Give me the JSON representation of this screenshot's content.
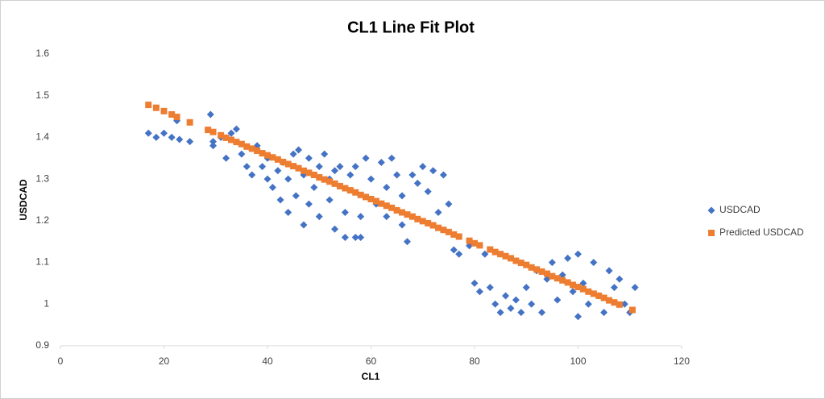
{
  "chart_data": {
    "type": "scatter",
    "title": "CL1 Line Fit  Plot",
    "x_label": "CL1",
    "y_label": "USDCAD",
    "xlim": [
      0,
      120
    ],
    "xticks": [
      0,
      20,
      40,
      60,
      80,
      100,
      120
    ],
    "ylim": [
      0.9,
      1.6
    ],
    "yticks": [
      0.9,
      1,
      1.1,
      1.2,
      1.3,
      1.4,
      1.5,
      1.6
    ],
    "grid": false,
    "legend": "right",
    "series": [
      {
        "name": "USDCAD",
        "color": "#4472c4",
        "marker": "diamond",
        "x": [
          17,
          18.5,
          20,
          21.5,
          22.5,
          23,
          25,
          29,
          29.5,
          29.5,
          31,
          32,
          33,
          34,
          35,
          36,
          37,
          38,
          39,
          40,
          40,
          41,
          42,
          42.5,
          43,
          44,
          44,
          45,
          45.5,
          46,
          47,
          47,
          48,
          48,
          49,
          50,
          50,
          51,
          52,
          52,
          53,
          53,
          54,
          55,
          55,
          56,
          57,
          57,
          58,
          58,
          59,
          60,
          61,
          62,
          63,
          63,
          64,
          65,
          66,
          66,
          67,
          68,
          69,
          70,
          71,
          72,
          73,
          74,
          75,
          76,
          77,
          79,
          80,
          81,
          82,
          83,
          84,
          85,
          86,
          87,
          88,
          89,
          90,
          91,
          92,
          93,
          94,
          95,
          96,
          97,
          98,
          99,
          100,
          100,
          101,
          102,
          103,
          104,
          105,
          106,
          107,
          108,
          109,
          110,
          111
        ],
        "values": [
          1.41,
          1.4,
          1.41,
          1.4,
          1.44,
          1.395,
          1.39,
          1.455,
          1.39,
          1.38,
          1.4,
          1.35,
          1.41,
          1.42,
          1.36,
          1.33,
          1.31,
          1.38,
          1.33,
          1.3,
          1.35,
          1.28,
          1.32,
          1.25,
          1.34,
          1.22,
          1.3,
          1.36,
          1.26,
          1.37,
          1.19,
          1.31,
          1.24,
          1.35,
          1.28,
          1.33,
          1.21,
          1.36,
          1.3,
          1.25,
          1.32,
          1.18,
          1.33,
          1.16,
          1.22,
          1.31,
          1.33,
          1.16,
          1.21,
          1.16,
          1.35,
          1.3,
          1.24,
          1.34,
          1.28,
          1.21,
          1.35,
          1.31,
          1.26,
          1.19,
          1.15,
          1.31,
          1.29,
          1.33,
          1.27,
          1.32,
          1.22,
          1.31,
          1.24,
          1.13,
          1.12,
          1.14,
          1.05,
          1.03,
          1.12,
          1.04,
          1,
          0.98,
          1.02,
          0.99,
          1.01,
          0.98,
          1.04,
          1,
          1.08,
          0.98,
          1.06,
          1.1,
          1.01,
          1.07,
          1.11,
          1.03,
          0.97,
          1.12,
          1.05,
          1,
          1.1,
          1.02,
          0.98,
          1.08,
          1.04,
          1.06,
          1,
          0.98,
          1.04
        ]
      },
      {
        "name": "Predicted USDCAD",
        "color": "#ed7d31",
        "marker": "square",
        "x": [
          17,
          18.5,
          20,
          21.5,
          22.5,
          25,
          28.5,
          29.5,
          31,
          32,
          33,
          34,
          35,
          36,
          37,
          38,
          39,
          40,
          41,
          42,
          43,
          44,
          45,
          46,
          47,
          48,
          49,
          50,
          51,
          52,
          53,
          54,
          55,
          56,
          57,
          58,
          59,
          60,
          61,
          62,
          63,
          64,
          65,
          66,
          67,
          68,
          69,
          70,
          71,
          72,
          73,
          74,
          75,
          76,
          77,
          79,
          80,
          81,
          83,
          84,
          85,
          86,
          87,
          88,
          89,
          90,
          91,
          92,
          93,
          94,
          95,
          96,
          97,
          98,
          99,
          100,
          101,
          102,
          103,
          104,
          105,
          106,
          107,
          108,
          110.5
        ],
        "values": [
          1.478,
          1.471,
          1.463,
          1.455,
          1.449,
          1.436,
          1.418,
          1.413,
          1.405,
          1.399,
          1.394,
          1.389,
          1.384,
          1.378,
          1.373,
          1.368,
          1.362,
          1.357,
          1.352,
          1.347,
          1.341,
          1.336,
          1.331,
          1.326,
          1.32,
          1.315,
          1.31,
          1.304,
          1.299,
          1.294,
          1.289,
          1.283,
          1.278,
          1.273,
          1.268,
          1.262,
          1.257,
          1.252,
          1.247,
          1.241,
          1.236,
          1.231,
          1.225,
          1.22,
          1.215,
          1.21,
          1.204,
          1.199,
          1.194,
          1.189,
          1.183,
          1.178,
          1.173,
          1.167,
          1.162,
          1.152,
          1.146,
          1.141,
          1.131,
          1.125,
          1.12,
          1.115,
          1.11,
          1.104,
          1.099,
          1.094,
          1.088,
          1.083,
          1.078,
          1.073,
          1.067,
          1.062,
          1.057,
          1.052,
          1.046,
          1.041,
          1.036,
          1.03,
          1.025,
          1.02,
          1.015,
          1.009,
          1.004,
          0.999,
          0.986
        ]
      }
    ]
  }
}
